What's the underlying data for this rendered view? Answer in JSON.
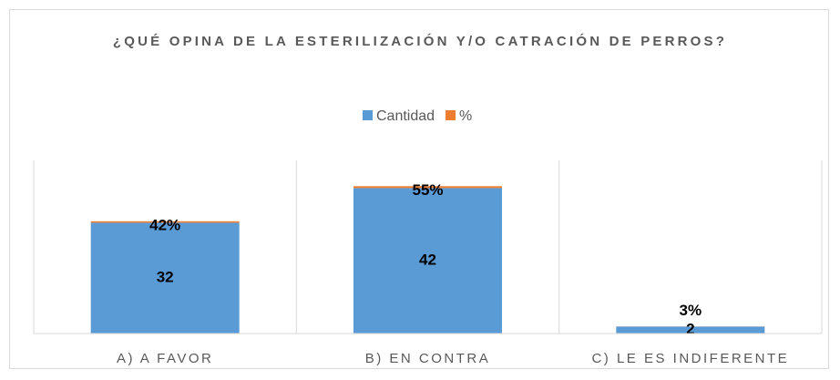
{
  "chart_data": {
    "type": "bar",
    "stacked": true,
    "title": "¿QUÉ OPINA DE LA ESTERILIZACIÓN Y/O CATRACIÓN DE PERROS?",
    "categories": [
      "A) A FAVOR",
      "B) EN CONTRA",
      "C) LE ES INDIFERENTE"
    ],
    "series": [
      {
        "name": "Cantidad",
        "color": "#5b9bd5",
        "values": [
          32,
          42,
          2
        ]
      },
      {
        "name": "%",
        "color": "#ed7d31",
        "values": [
          0.42,
          0.55,
          0.03
        ],
        "value_labels": [
          "42%",
          "55%",
          "3%"
        ]
      }
    ],
    "ylim": [
      0,
      50
    ],
    "legend": "top"
  }
}
